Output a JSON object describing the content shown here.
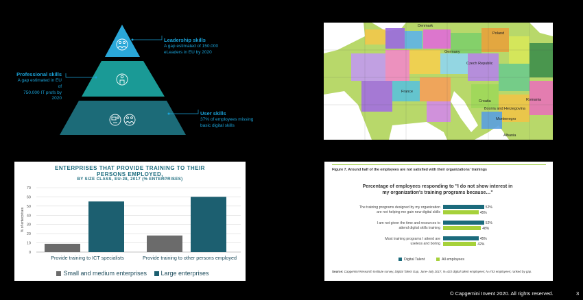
{
  "pyramid": {
    "levels": [
      {
        "title": "Leadership skills",
        "desc1": "A gap estimated of 150.000",
        "desc2": "eLeaders in EU by 2020"
      },
      {
        "title": "Professional skills",
        "desc1": "A gap estimated in EU of",
        "desc2": "750.000 IT profs by 2020"
      },
      {
        "title": "User skills",
        "desc1": "37% of employees missing",
        "desc2": "basic digital skills"
      }
    ],
    "colors": {
      "top": "#2aa7d8",
      "middle": "#1a9a96",
      "bottom": "#1c6b78"
    }
  },
  "map": {
    "labels": [
      "Denmark",
      "Poland",
      "Germany",
      "Czech Republic",
      "France",
      "Croatia",
      "Bosnia and Herzegovina",
      "Montenegro",
      "Romania",
      "Albania"
    ],
    "water_color": "#ffffff"
  },
  "bar_chart": {
    "title_line1": "ENTERPRISES THAT PROVIDE TRAINING TO THEIR",
    "title_line2": "PERSONS EMPLOYED,",
    "subtitle": "BY SIZE CLASS, EU-28, 2017 (% ENTERPRISES)",
    "ylabel": "% of enterprises",
    "legend": [
      "Small and medium enterprises",
      "Large enterprises"
    ]
  },
  "chart_data": [
    {
      "type": "bar",
      "title": "ENTERPRISES THAT PROVIDE TRAINING TO THEIR PERSONS EMPLOYED, BY SIZE CLASS, EU-28, 2017 (% ENTERPRISES)",
      "categories": [
        "Provide training to ICT specialists",
        "Provide training to other persons employed"
      ],
      "series": [
        {
          "name": "Small and medium enterprises",
          "values": [
            9,
            18
          ],
          "color": "#6b6b6b"
        },
        {
          "name": "Large enterprises",
          "values": [
            55,
            60
          ],
          "color": "#1c5f70"
        }
      ],
      "ylabel": "% of enterprises",
      "ylim": [
        0,
        70
      ],
      "yticks": [
        0,
        10,
        20,
        30,
        40,
        50,
        60,
        70
      ],
      "grid": true,
      "legend": "bottom"
    },
    {
      "type": "bar",
      "orientation": "horizontal",
      "title": "Percentage of employees responding to \"I do not show interest in my organization's training programs because...\"",
      "categories": [
        "The training programs designed by my organization are not helping me gain new digital skills",
        "I am not given the time and resources to attend digital skills training",
        "Most training programs I attend are useless and boring"
      ],
      "series": [
        {
          "name": "Digital Talent",
          "values": [
            52,
            52,
            45
          ],
          "color": "#1b6b7c"
        },
        {
          "name": "All employees",
          "values": [
            45,
            48,
            42
          ],
          "color": "#a6d13a"
        }
      ],
      "xlim": [
        0,
        100
      ],
      "legend": "bottom"
    }
  ],
  "survey": {
    "figure_title": "Figure 7. Around half of the employees are not satisfied with their organizations' trainings",
    "heading_line1": "Percentage of employees responding to \"I do not show interest in",
    "heading_line2": "my organization's training programs because…\"",
    "categories": [
      {
        "l1": "The training programs designed by my organization",
        "l2": "are not helping me gain new digital skills",
        "v1": "52%",
        "v2": "45%"
      },
      {
        "l1": "I am not given the time and resources to",
        "l2": "attend digital skills training",
        "v1": "52%",
        "v2": "48%"
      },
      {
        "l1": "Most training programs I attend are",
        "l2": "useless and boring",
        "v1": "45%",
        "v2": "42%"
      }
    ],
    "legend": [
      "Digital Talent",
      "All employees"
    ],
    "source_label": "Source:",
    "source_text": " Capgemini Research Institute survey, Digital Talent Gap, June–July 2017, N=423 digital talent employees; N=753 employees; ranked by gap."
  },
  "footer": {
    "copyright": "© Capgemini Invent 2020. All rights reserved.",
    "page": "3"
  }
}
